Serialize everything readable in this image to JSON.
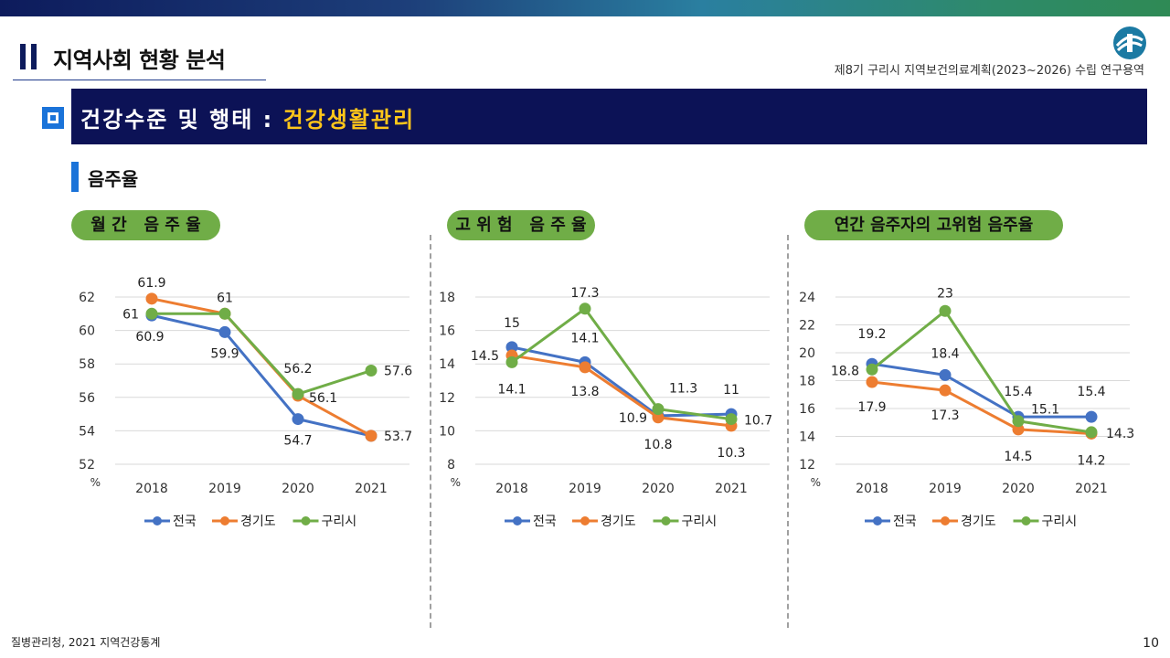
{
  "header": {
    "section_title": "지역사회 현황 분석",
    "project_name": "제8기 구리시 지역보건의료계획(2023~2026) 수립 연구용역"
  },
  "banner": {
    "title_prefix": "건강수준 및 행태 : ",
    "title_highlight": "건강생활관리"
  },
  "subsection": {
    "title": "음주율"
  },
  "colors": {
    "전국": "#4472c4",
    "경기도": "#ed7d31",
    "구리시": "#70ad47",
    "pill": "#70ad47",
    "banner": "#0c1256",
    "highlight": "#ffc61a"
  },
  "chart_data": [
    {
      "type": "line",
      "title": "월 간   음 주 율",
      "categories": [
        "2018",
        "2019",
        "2020",
        "2021"
      ],
      "ylim": [
        52,
        62
      ],
      "yticks": [
        "52",
        "54",
        "56",
        "58",
        "60",
        "62"
      ],
      "yunit": "%",
      "grid": true,
      "legend": "bottom",
      "series": [
        {
          "name": "전국",
          "values": [
            60.9,
            59.9,
            54.7,
            53.7
          ]
        },
        {
          "name": "경기도",
          "values": [
            61.9,
            61,
            56.1,
            53.7
          ]
        },
        {
          "name": "구리시",
          "values": [
            61,
            61,
            56.2,
            57.6
          ]
        }
      ]
    },
    {
      "type": "line",
      "title": "고 위 험   음 주 율",
      "categories": [
        "2018",
        "2019",
        "2020",
        "2021"
      ],
      "ylim": [
        8,
        18
      ],
      "yticks": [
        "8",
        "10",
        "12",
        "14",
        "16",
        "18"
      ],
      "yunit": "%",
      "grid": true,
      "legend": "bottom",
      "series": [
        {
          "name": "전국",
          "values": [
            15,
            14.1,
            10.9,
            11
          ]
        },
        {
          "name": "경기도",
          "values": [
            14.5,
            13.8,
            10.8,
            10.3
          ]
        },
        {
          "name": "구리시",
          "values": [
            14.1,
            17.3,
            11.3,
            10.7
          ]
        }
      ]
    },
    {
      "type": "line",
      "title": "연간 음주자의 고위험 음주율",
      "categories": [
        "2018",
        "2019",
        "2020",
        "2021"
      ],
      "ylim": [
        12,
        24
      ],
      "yticks": [
        "12",
        "14",
        "16",
        "18",
        "20",
        "22",
        "24"
      ],
      "yunit": "%",
      "grid": true,
      "legend": "bottom",
      "series": [
        {
          "name": "전국",
          "values": [
            19.2,
            18.4,
            15.4,
            15.4
          ]
        },
        {
          "name": "경기도",
          "values": [
            17.9,
            17.3,
            14.5,
            14.2
          ]
        },
        {
          "name": "구리시",
          "values": [
            18.8,
            23,
            15.1,
            14.3
          ]
        }
      ]
    }
  ],
  "footer": {
    "source": "질병관리청, 2021 지역건강통계",
    "page_number": "10"
  }
}
